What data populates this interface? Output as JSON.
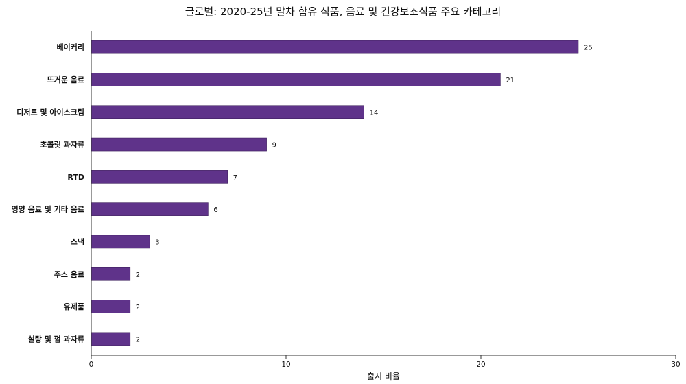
{
  "chart_data": {
    "type": "bar",
    "orientation": "horizontal",
    "title": "글로벌: 2020-25년 말차 함유 식품, 음료 및 건강보조식품 주요 카테고리",
    "xlabel": "출시 비율",
    "ylabel": "",
    "xlim": [
      0,
      30
    ],
    "xticks": [
      0,
      10,
      20,
      30
    ],
    "grid": false,
    "bar_color": "#5f338a",
    "categories": [
      "베이커리",
      "뜨거운 음료",
      "디저트 및 아이스크림",
      "초콜릿 과자류",
      "RTD",
      "영양 음료 및 기타 음료",
      "스낵",
      "주스 음료",
      "유제품",
      "설탕 및 껌 과자류"
    ],
    "values": [
      25,
      21,
      14,
      9,
      7,
      6,
      3,
      2,
      2,
      2
    ]
  }
}
